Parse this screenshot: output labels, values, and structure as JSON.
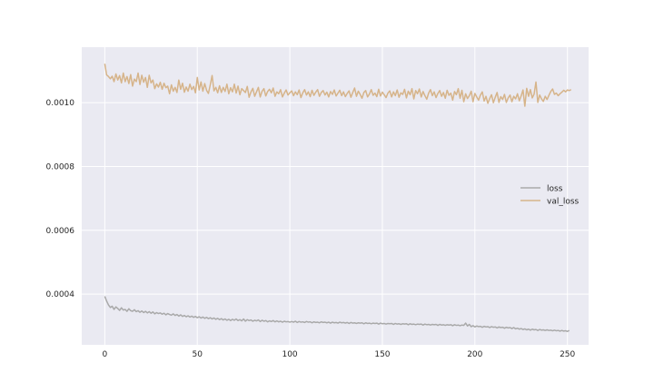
{
  "chart_data": {
    "type": "line",
    "title": "",
    "xlabel": "",
    "ylabel": "",
    "xlim": [
      -12.45,
      261.45
    ],
    "ylim": [
      0.000241,
      0.001174
    ],
    "xticks": [
      0,
      50,
      100,
      150,
      200,
      250
    ],
    "xtick_labels": [
      "0",
      "50",
      "100",
      "150",
      "200",
      "250"
    ],
    "yticks": [
      0.0004,
      0.0006,
      0.0008,
      0.001
    ],
    "ytick_labels": [
      "0.0004",
      "0.0006",
      "0.0008",
      "0.0010"
    ],
    "grid": true,
    "legend_position": "center-right",
    "colors": {
      "background": "#eaeaf2",
      "grid": "#ffffff",
      "tick_text": "#262626"
    },
    "series": [
      {
        "name": "loss",
        "color": "#a9a9a9",
        "x_start": 0,
        "x_step": 1,
        "values": [
          0.000393,
          0.000378,
          0.000366,
          0.000358,
          0.000362,
          0.000352,
          0.00036,
          0.000355,
          0.000349,
          0.000357,
          0.00035,
          0.000352,
          0.000346,
          0.000354,
          0.000348,
          0.000346,
          0.000351,
          0.000345,
          0.000348,
          0.000343,
          0.000347,
          0.000342,
          0.000346,
          0.000341,
          0.000345,
          0.00034,
          0.000344,
          0.000338,
          0.000342,
          0.000339,
          0.000341,
          0.000337,
          0.00034,
          0.000335,
          0.000339,
          0.000336,
          0.000334,
          0.000338,
          0.000333,
          0.000336,
          0.000331,
          0.000335,
          0.00033,
          0.000333,
          0.000329,
          0.000332,
          0.000328,
          0.000331,
          0.000327,
          0.00033,
          0.000326,
          0.000329,
          0.000325,
          0.000328,
          0.000324,
          0.000327,
          0.000323,
          0.000326,
          0.000322,
          0.000325,
          0.000321,
          0.000324,
          0.00032,
          0.000323,
          0.000319,
          0.000322,
          0.000318,
          0.000321,
          0.000317,
          0.000321,
          0.000318,
          0.000322,
          0.000317,
          0.00032,
          0.000316,
          0.000322,
          0.000315,
          0.00032,
          0.000317,
          0.000319,
          0.000315,
          0.000318,
          0.000316,
          0.000319,
          0.000314,
          0.000318,
          0.000315,
          0.000317,
          0.000313,
          0.000316,
          0.000314,
          0.000317,
          0.000313,
          0.000316,
          0.000313,
          0.000315,
          0.000312,
          0.000315,
          0.000313,
          0.000314,
          0.000312,
          0.000314,
          0.000312,
          0.000315,
          0.000311,
          0.000314,
          0.000312,
          0.000313,
          0.000311,
          0.000314,
          0.000312,
          0.000313,
          0.00031,
          0.000313,
          0.000311,
          0.000312,
          0.00031,
          0.000313,
          0.000311,
          0.000312,
          0.00031,
          0.000312,
          0.000309,
          0.000312,
          0.00031,
          0.000311,
          0.000309,
          0.000312,
          0.00031,
          0.000311,
          0.000309,
          0.000311,
          0.000308,
          0.000311,
          0.000309,
          0.00031,
          0.000308,
          0.00031,
          0.000309,
          0.00031,
          0.000307,
          0.00031,
          0.000308,
          0.000309,
          0.000307,
          0.000309,
          0.000308,
          0.000309,
          0.000306,
          0.000309,
          0.000307,
          0.000308,
          0.000306,
          0.000308,
          0.000307,
          0.000308,
          0.000305,
          0.000308,
          0.000306,
          0.000307,
          0.000305,
          0.000307,
          0.000306,
          0.000307,
          0.000304,
          0.000307,
          0.000305,
          0.000306,
          0.000304,
          0.000306,
          0.000305,
          0.000306,
          0.000303,
          0.000306,
          0.000304,
          0.000305,
          0.000303,
          0.000305,
          0.000304,
          0.000305,
          0.000302,
          0.000305,
          0.000303,
          0.000304,
          0.000302,
          0.000304,
          0.000303,
          0.000304,
          0.000301,
          0.000304,
          0.000302,
          0.000303,
          0.000301,
          0.000303,
          0.000302,
          0.000309,
          0.0003,
          0.000305,
          0.000298,
          0.000301,
          0.000297,
          0.0003,
          0.000298,
          0.000299,
          0.000296,
          0.000299,
          0.000297,
          0.000298,
          0.000295,
          0.000298,
          0.000296,
          0.000297,
          0.000294,
          0.000297,
          0.000295,
          0.000296,
          0.000293,
          0.000296,
          0.000294,
          0.000295,
          0.000292,
          0.000295,
          0.000291,
          0.000293,
          0.00029,
          0.000292,
          0.000289,
          0.000291,
          0.000288,
          0.00029,
          0.000287,
          0.00029,
          0.000288,
          0.000289,
          0.000286,
          0.000289,
          0.000287,
          0.000288,
          0.000286,
          0.000288,
          0.000286,
          0.000287,
          0.000285,
          0.000287,
          0.000285,
          0.000286,
          0.000284,
          0.000286,
          0.000284,
          0.000285,
          0.000283,
          0.000286
        ]
      },
      {
        "name": "val_loss",
        "color": "#d6b48a",
        "x_start": 0,
        "x_step": 1,
        "values": [
          0.001122,
          0.001087,
          0.001082,
          0.001075,
          0.001083,
          0.001066,
          0.00109,
          0.001071,
          0.001085,
          0.001062,
          0.001093,
          0.001066,
          0.001082,
          0.00106,
          0.001088,
          0.001052,
          0.001074,
          0.001066,
          0.001093,
          0.001057,
          0.001086,
          0.001064,
          0.001079,
          0.001048,
          0.001086,
          0.001062,
          0.001071,
          0.001044,
          0.001059,
          0.001049,
          0.001064,
          0.001042,
          0.001061,
          0.001047,
          0.001052,
          0.001028,
          0.001056,
          0.001036,
          0.001048,
          0.001032,
          0.001071,
          0.001042,
          0.001061,
          0.001033,
          0.001049,
          0.001036,
          0.001058,
          0.001041,
          0.001051,
          0.001031,
          0.001079,
          0.00104,
          0.001065,
          0.001036,
          0.00106,
          0.001039,
          0.001029,
          0.001056,
          0.001085,
          0.001037,
          0.001048,
          0.001031,
          0.001053,
          0.001032,
          0.001048,
          0.001035,
          0.001058,
          0.001028,
          0.001047,
          0.001034,
          0.001058,
          0.00103,
          0.001052,
          0.001025,
          0.001044,
          0.001038,
          0.001032,
          0.001051,
          0.001017,
          0.001034,
          0.001045,
          0.00102,
          0.001034,
          0.001048,
          0.001018,
          0.001036,
          0.001044,
          0.001021,
          0.001035,
          0.001042,
          0.001031,
          0.001046,
          0.00102,
          0.001034,
          0.001028,
          0.001041,
          0.001018,
          0.00103,
          0.00104,
          0.001024,
          0.001031,
          0.001037,
          0.001022,
          0.001034,
          0.001025,
          0.00104,
          0.001016,
          0.001031,
          0.001041,
          0.001024,
          0.001034,
          0.001019,
          0.001039,
          0.001023,
          0.001033,
          0.001041,
          0.00102,
          0.001032,
          0.001038,
          0.001024,
          0.001033,
          0.001018,
          0.001035,
          0.001026,
          0.00104,
          0.001021,
          0.00103,
          0.001039,
          0.001022,
          0.001034,
          0.001019,
          0.001029,
          0.001037,
          0.001017,
          0.001032,
          0.001046,
          0.00102,
          0.001036,
          0.001026,
          0.001014,
          0.001032,
          0.001038,
          0.001018,
          0.001027,
          0.001041,
          0.001023,
          0.00103,
          0.001019,
          0.001042,
          0.001021,
          0.001033,
          0.001025,
          0.001016,
          0.00103,
          0.001037,
          0.001018,
          0.001034,
          0.001022,
          0.00104,
          0.001017,
          0.001031,
          0.001026,
          0.001042,
          0.001015,
          0.001036,
          0.001025,
          0.001044,
          0.001012,
          0.001038,
          0.001028,
          0.001043,
          0.001018,
          0.001035,
          0.001022,
          0.001011,
          0.00103,
          0.001041,
          0.001022,
          0.001034,
          0.001016,
          0.001029,
          0.001038,
          0.00102,
          0.001032,
          0.001014,
          0.001039,
          0.001023,
          0.00103,
          0.001008,
          0.001035,
          0.001025,
          0.001044,
          0.001014,
          0.001039,
          0.001003,
          0.001028,
          0.001013,
          0.001022,
          0.001036,
          0.001003,
          0.001029,
          0.001018,
          0.001008,
          0.001024,
          0.001034,
          0.001005,
          0.00102,
          0.000998,
          0.001013,
          0.001025,
          0.001,
          0.001017,
          0.001032,
          0.001001,
          0.001019,
          0.00101,
          0.001026,
          0.001001,
          0.001015,
          0.001024,
          0.001003,
          0.00102,
          0.001012,
          0.001028,
          0.001006,
          0.001021,
          0.00104,
          0.000989,
          0.001045,
          0.00102,
          0.001041,
          0.001015,
          0.001027,
          0.001065,
          0.001001,
          0.001024,
          0.001012,
          0.001004,
          0.00102,
          0.00101,
          0.001023,
          0.001035,
          0.001043,
          0.001026,
          0.00103,
          0.001022,
          0.001028,
          0.001033,
          0.001039,
          0.001034,
          0.00104,
          0.001038,
          0.001041
        ]
      }
    ]
  }
}
